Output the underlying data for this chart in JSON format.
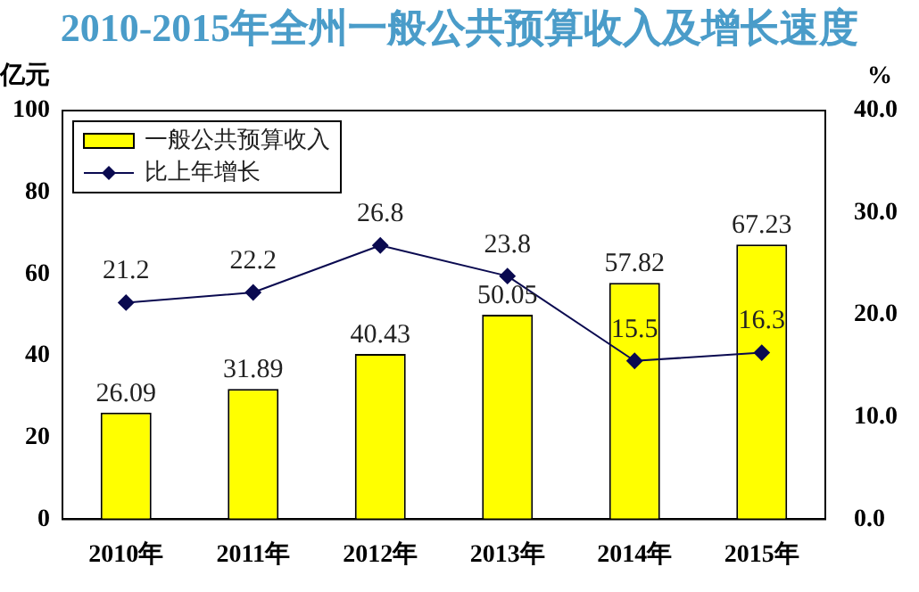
{
  "chart_data": {
    "type": "bar",
    "title": "2010-2015年全州一般公共预算收入及增长速度",
    "categories": [
      "2010年",
      "2011年",
      "2012年",
      "2013年",
      "2014年",
      "2015年"
    ],
    "series": [
      {
        "name": "一般公共预算收入",
        "color": "#ffff00",
        "values": [
          26.09,
          31.89,
          40.43,
          50.05,
          57.82,
          67.23
        ]
      },
      {
        "name": "比上年增长",
        "type": "line",
        "axis": "y2",
        "color": "#0a0a50",
        "marker": "diamond",
        "values": [
          21.2,
          22.2,
          26.8,
          23.8,
          15.5,
          16.3
        ]
      }
    ],
    "ylabel": "亿元",
    "y2label": "%",
    "ylim": [
      0,
      100
    ],
    "yticks": [
      0,
      20,
      40,
      60,
      80,
      100
    ],
    "y2lim": [
      0,
      40
    ],
    "y2ticks": [
      {
        "value": 0,
        "label": "0.0"
      },
      {
        "value": 10,
        "label": "10.0"
      },
      {
        "value": 20,
        "label": "20.0"
      },
      {
        "value": 30,
        "label": "30.0"
      },
      {
        "value": 40,
        "label": "40.0"
      }
    ],
    "data_labels": true,
    "grid": false,
    "legend": "top left"
  }
}
